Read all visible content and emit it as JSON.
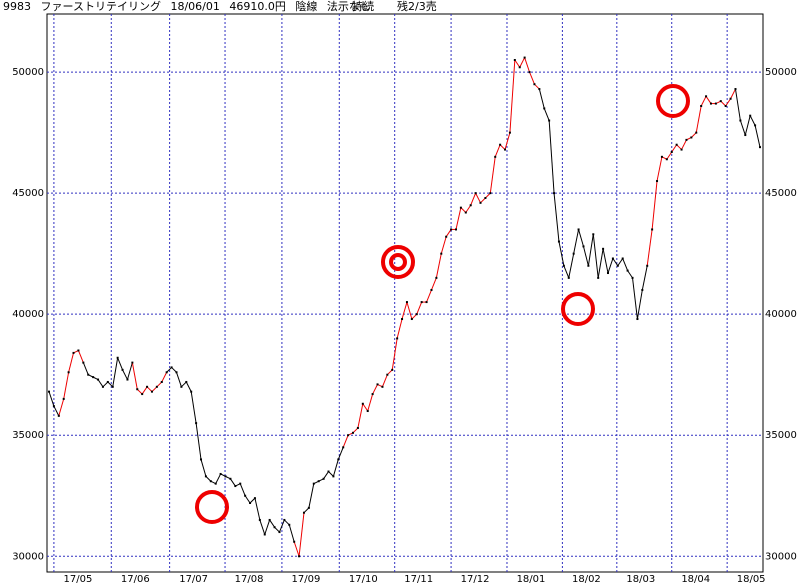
{
  "chart_data": {
    "type": "line",
    "header": {
      "code": "9983",
      "name": "ファーストリテイリング",
      "date": "18/06/01",
      "price": "46910.0円",
      "candle": "陰線",
      "signal": "法示なし",
      "status": "持続",
      "position": "残2/3売"
    },
    "values": [
      36800,
      36200,
      35800,
      36500,
      37600,
      38400,
      38500,
      38000,
      37500,
      37400,
      37300,
      37000,
      37200,
      37000,
      38200,
      37700,
      37300,
      38000,
      36900,
      36700,
      37000,
      36800,
      37000,
      37200,
      37600,
      37800,
      37600,
      37000,
      37200,
      36800,
      35500,
      34000,
      33300,
      33100,
      33000,
      33400,
      33300,
      33200,
      32900,
      33000,
      32500,
      32200,
      32400,
      31500,
      30900,
      31500,
      31200,
      31000,
      31500,
      31300,
      30600,
      30000,
      31800,
      32000,
      33000,
      33100,
      33200,
      33500,
      33300,
      34000,
      34500,
      35000,
      35100,
      35300,
      36300,
      36000,
      36700,
      37100,
      37000,
      37500,
      37700,
      39000,
      39800,
      40500,
      39800,
      40000,
      40500,
      40500,
      41000,
      41500,
      42500,
      43200,
      43500,
      43500,
      44400,
      44200,
      44500,
      45000,
      44600,
      44800,
      45000,
      46500,
      47000,
      46800,
      47500,
      50500,
      50200,
      50600,
      50000,
      49500,
      49300,
      48500,
      48000,
      45000,
      43000,
      42000,
      41500,
      42500,
      43500,
      42800,
      42000,
      43300,
      41500,
      42700,
      41700,
      42300,
      42000,
      42300,
      41800,
      41500,
      39800,
      41000,
      42000,
      43500,
      45500,
      46500,
      46400,
      46700,
      47000,
      46800,
      47200,
      47300,
      47500,
      48600,
      49000,
      48700,
      48700,
      48800,
      48600,
      48900,
      49300,
      48000,
      47400,
      48200,
      47800,
      46900
    ],
    "colors": [
      "#000",
      "#000",
      "#000",
      "#e00",
      "#e00",
      "#e00",
      "#e00",
      "#e00",
      "#000",
      "#000",
      "#000",
      "#000",
      "#000",
      "#000",
      "#000",
      "#000",
      "#000",
      "#000",
      "#e00",
      "#e00",
      "#e00",
      "#e00",
      "#e00",
      "#e00",
      "#e00",
      "#000",
      "#000",
      "#000",
      "#000",
      "#000",
      "#000",
      "#000",
      "#000",
      "#000",
      "#000",
      "#000",
      "#000",
      "#000",
      "#000",
      "#000",
      "#000",
      "#000",
      "#000",
      "#000",
      "#000",
      "#000",
      "#000",
      "#000",
      "#000",
      "#000",
      "#000",
      "#e00",
      "#e00",
      "#000",
      "#000",
      "#000",
      "#000",
      "#000",
      "#000",
      "#000",
      "#000",
      "#e00",
      "#e00",
      "#e00",
      "#e00",
      "#e00",
      "#e00",
      "#e00",
      "#e00",
      "#e00",
      "#e00",
      "#e00",
      "#e00",
      "#e00",
      "#e00",
      "#e00",
      "#e00",
      "#e00",
      "#e00",
      "#e00",
      "#e00",
      "#e00",
      "#e00",
      "#e00",
      "#e00",
      "#e00",
      "#e00",
      "#e00",
      "#e00",
      "#e00",
      "#e00",
      "#e00",
      "#e00",
      "#e00",
      "#e00",
      "#e00",
      "#e00",
      "#e00",
      "#e00",
      "#e00",
      "#e00",
      "#000",
      "#000",
      "#000",
      "#000",
      "#000",
      "#000",
      "#000",
      "#000",
      "#000",
      "#000",
      "#000",
      "#000",
      "#000",
      "#000",
      "#000",
      "#000",
      "#000",
      "#000",
      "#000",
      "#000",
      "#000",
      "#000",
      "#e00",
      "#e00",
      "#e00",
      "#e00",
      "#e00",
      "#e00",
      "#e00",
      "#e00",
      "#e00",
      "#e00",
      "#e00",
      "#e00",
      "#e00",
      "#e00",
      "#e00",
      "#e00",
      "#e00",
      "#e00",
      "#000",
      "#000",
      "#000",
      "#000",
      "#000"
    ],
    "xlim": [
      0,
      145
    ],
    "xticks": [
      {
        "value": 1,
        "label": "17/05"
      },
      {
        "value": 12.7,
        "label": "17/06"
      },
      {
        "value": 24.6,
        "label": "17/07"
      },
      {
        "value": 35.9,
        "label": "17/08"
      },
      {
        "value": 47.5,
        "label": "17/09"
      },
      {
        "value": 59.2,
        "label": "17/10"
      },
      {
        "value": 70.5,
        "label": "17/11"
      },
      {
        "value": 82,
        "label": "17/12"
      },
      {
        "value": 93.4,
        "label": "18/01"
      },
      {
        "value": 104.7,
        "label": "18/02"
      },
      {
        "value": 115.8,
        "label": "18/03"
      },
      {
        "value": 127,
        "label": "18/04"
      },
      {
        "value": 138.3,
        "label": "18/05"
      }
    ],
    "ylim": [
      29350,
      52400
    ],
    "yticks": [
      30000,
      35000,
      40000,
      45000,
      50000
    ],
    "grid": true,
    "grid_color": "#3030c0"
  }
}
